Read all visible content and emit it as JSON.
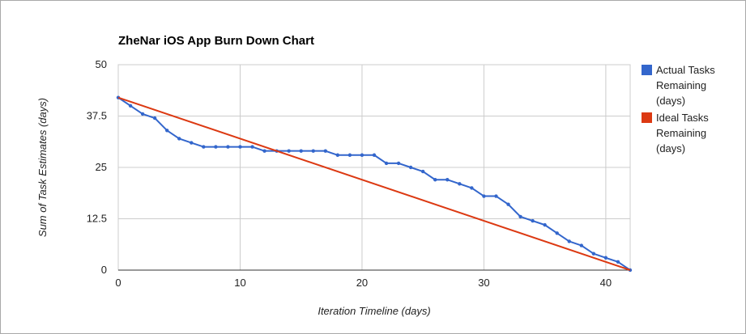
{
  "chart_data": {
    "type": "line",
    "title": "ZheNar iOS App Burn Down Chart",
    "xlabel": "Iteration Timeline (days)",
    "ylabel": "Sum of Task Estimates (days)",
    "xlim": [
      0,
      42
    ],
    "ylim": [
      0,
      50
    ],
    "x_ticks": [
      "0",
      "10",
      "20",
      "30",
      "40"
    ],
    "y_ticks": [
      "0",
      "12.5",
      "25",
      "37.5",
      "50"
    ],
    "grid": true,
    "legend_position": "right",
    "series": [
      {
        "name_lines": [
          "Actual Tasks",
          "Remaining",
          "(days)"
        ],
        "color": "#3366cc",
        "markers": true,
        "x": [
          0,
          1,
          2,
          3,
          4,
          5,
          6,
          7,
          8,
          9,
          10,
          11,
          12,
          13,
          14,
          15,
          16,
          17,
          18,
          19,
          20,
          21,
          22,
          23,
          24,
          25,
          26,
          27,
          28,
          29,
          30,
          31,
          32,
          33,
          34,
          35,
          36,
          37,
          38,
          39,
          40,
          41,
          42
        ],
        "values": [
          42,
          40,
          38,
          37,
          34,
          32,
          31,
          30,
          30,
          30,
          30,
          30,
          29,
          29,
          29,
          29,
          29,
          29,
          28,
          28,
          28,
          28,
          26,
          26,
          25,
          24,
          22,
          22,
          21,
          20,
          18,
          18,
          16,
          13,
          12,
          11,
          9,
          7,
          6,
          4,
          3,
          2,
          0
        ]
      },
      {
        "name_lines": [
          "Ideal Tasks",
          "Remaining",
          "(days)"
        ],
        "color": "#dc3912",
        "markers": false,
        "x": [
          0,
          42
        ],
        "values": [
          42,
          0
        ]
      }
    ]
  }
}
